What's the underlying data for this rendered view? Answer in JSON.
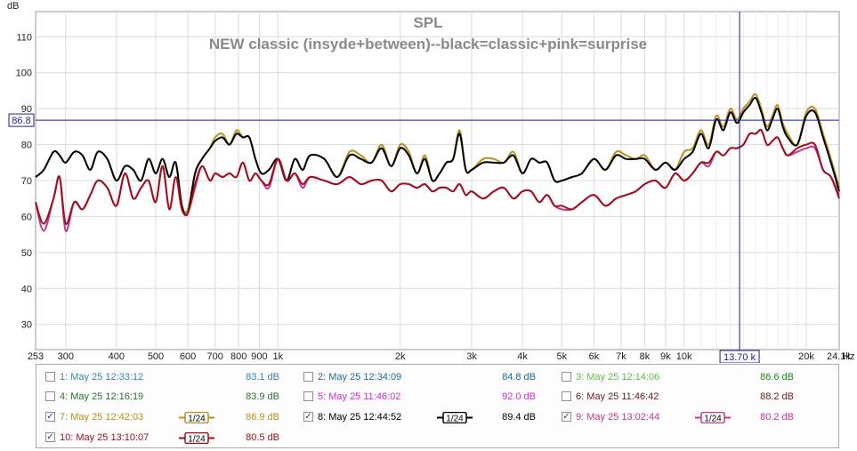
{
  "chart_data": {
    "type": "line",
    "title": "SPL",
    "subtitle": "NEW classic (insyde+between)--black=classic+pink=surprise",
    "ylabel": "dB",
    "xlabel": "Hz",
    "xscale": "log",
    "xlim": [
      253,
      24100
    ],
    "ylim": [
      23,
      117
    ],
    "grid": true,
    "y_ticks": [
      30,
      40,
      50,
      60,
      70,
      80,
      90,
      100,
      110
    ],
    "x_ticks": [
      {
        "value": 253,
        "label": "253"
      },
      {
        "value": 300,
        "label": "300"
      },
      {
        "value": 400,
        "label": "400"
      },
      {
        "value": 500,
        "label": "500"
      },
      {
        "value": 600,
        "label": "600"
      },
      {
        "value": 700,
        "label": "700"
      },
      {
        "value": 800,
        "label": "800"
      },
      {
        "value": 900,
        "label": "900"
      },
      {
        "value": 1000,
        "label": "1k"
      },
      {
        "value": 2000,
        "label": "2k"
      },
      {
        "value": 3000,
        "label": "3k"
      },
      {
        "value": 4000,
        "label": "4k"
      },
      {
        "value": 5000,
        "label": "5k"
      },
      {
        "value": 6000,
        "label": "6k"
      },
      {
        "value": 7000,
        "label": "7k"
      },
      {
        "value": 8000,
        "label": "8k"
      },
      {
        "value": 9000,
        "label": "9k"
      },
      {
        "value": 10000,
        "label": "10k"
      },
      {
        "value": 20000,
        "label": "20k"
      },
      {
        "value": 24100,
        "label": "24.1k"
      }
    ],
    "x_minor_ticks": [
      11000,
      12000,
      13000,
      14000,
      15000,
      16000,
      17000,
      18000,
      19000
    ],
    "cursor": {
      "x": 13700,
      "x_label": "13.70 k",
      "y": 86.8,
      "y_label": "86.8"
    },
    "series": [
      {
        "name": "7: May 25 12:42:03",
        "color": "#b8901a",
        "x": [
          253,
          265,
          280,
          290,
          300,
          315,
          330,
          345,
          360,
          380,
          400,
          420,
          440,
          460,
          480,
          500,
          520,
          540,
          560,
          580,
          600,
          625,
          650,
          680,
          700,
          730,
          760,
          790,
          820,
          850,
          880,
          910,
          950,
          1000,
          1050,
          1100,
          1150,
          1200,
          1300,
          1400,
          1500,
          1600,
          1700,
          1800,
          1900,
          2000,
          2100,
          2200,
          2300,
          2400,
          2500,
          2600,
          2700,
          2800,
          2900,
          3000,
          3200,
          3400,
          3600,
          3800,
          4000,
          4200,
          4400,
          4600,
          4800,
          5000,
          5300,
          5600,
          6000,
          6400,
          6800,
          7200,
          7600,
          8000,
          8500,
          9000,
          9500,
          10000,
          10500,
          11000,
          11500,
          12000,
          12500,
          13000,
          13500,
          14000,
          14500,
          15000,
          15500,
          16000,
          16500,
          17000,
          17500,
          18000,
          19000,
          20000,
          21000,
          22000,
          23000,
          24100
        ],
        "y": [
          71,
          73,
          78,
          77,
          75,
          78,
          77,
          73,
          78,
          76,
          70,
          74,
          73,
          70,
          76,
          72,
          76,
          71,
          75,
          63,
          62,
          72,
          76,
          79,
          82,
          83,
          80,
          84,
          82,
          82,
          76,
          72,
          73,
          76,
          70,
          76,
          73,
          77,
          76,
          71,
          78,
          77,
          75,
          80,
          74,
          80,
          78,
          72,
          77,
          70,
          72,
          75,
          76,
          84,
          73,
          73,
          76,
          76,
          75,
          78,
          72,
          76,
          75,
          75,
          70,
          70,
          71,
          72,
          76,
          73,
          78,
          77,
          76,
          77,
          73,
          75,
          73,
          78,
          79,
          84,
          80,
          88,
          85,
          90,
          87,
          90,
          92,
          94,
          90,
          85,
          88,
          91,
          86,
          83,
          80,
          89,
          90,
          83,
          76,
          68
        ]
      },
      {
        "name": "8: May 25 12:44:52",
        "color": "#000000",
        "x": [
          253,
          265,
          280,
          290,
          300,
          315,
          330,
          345,
          360,
          380,
          400,
          420,
          440,
          460,
          480,
          500,
          520,
          540,
          560,
          580,
          600,
          625,
          650,
          680,
          700,
          730,
          760,
          790,
          820,
          850,
          880,
          910,
          950,
          1000,
          1050,
          1100,
          1150,
          1200,
          1300,
          1400,
          1500,
          1600,
          1700,
          1800,
          1900,
          2000,
          2100,
          2200,
          2300,
          2400,
          2500,
          2600,
          2700,
          2800,
          2900,
          3000,
          3200,
          3400,
          3600,
          3800,
          4000,
          4200,
          4400,
          4600,
          4800,
          5000,
          5300,
          5600,
          6000,
          6400,
          6800,
          7200,
          7600,
          8000,
          8500,
          9000,
          9500,
          10000,
          10500,
          11000,
          11500,
          12000,
          12500,
          13000,
          13500,
          14000,
          14500,
          15000,
          15500,
          16000,
          16500,
          17000,
          17500,
          18000,
          19000,
          20000,
          21000,
          22000,
          23000,
          24100
        ],
        "y": [
          71,
          73,
          78,
          77,
          75,
          78,
          77,
          73,
          78,
          76,
          70,
          74,
          73,
          70,
          76,
          72,
          76,
          71,
          75,
          63,
          61,
          72,
          76,
          79,
          81,
          82,
          80,
          83,
          82,
          82,
          76,
          72,
          73,
          76,
          70,
          76,
          73,
          77,
          76,
          71,
          77,
          76,
          75,
          79,
          74,
          79,
          77,
          72,
          76,
          70,
          72,
          75,
          76,
          83,
          73,
          73,
          75,
          75,
          75,
          77,
          72,
          76,
          75,
          75,
          70,
          70,
          71,
          72,
          76,
          73,
          77,
          76,
          76,
          76,
          73,
          75,
          73,
          76,
          78,
          83,
          79,
          87,
          84,
          89,
          86,
          89,
          91,
          93,
          89,
          84,
          87,
          90,
          85,
          82,
          80,
          88,
          89,
          82,
          75,
          67
        ]
      },
      {
        "name": "9: May 25 13:02:44",
        "color": "#c03a92",
        "x": [
          253,
          265,
          280,
          290,
          300,
          315,
          330,
          345,
          360,
          380,
          400,
          420,
          440,
          460,
          480,
          500,
          520,
          540,
          560,
          580,
          600,
          625,
          650,
          680,
          700,
          730,
          760,
          790,
          820,
          850,
          880,
          910,
          950,
          1000,
          1050,
          1100,
          1150,
          1200,
          1300,
          1400,
          1500,
          1600,
          1700,
          1800,
          1900,
          2000,
          2100,
          2200,
          2300,
          2400,
          2500,
          2600,
          2700,
          2800,
          2900,
          3000,
          3200,
          3400,
          3600,
          3800,
          4000,
          4200,
          4400,
          4600,
          4800,
          5000,
          5300,
          5600,
          6000,
          6400,
          6800,
          7200,
          7600,
          8000,
          8500,
          9000,
          9500,
          10000,
          10500,
          11000,
          11500,
          12000,
          12500,
          13000,
          13500,
          14000,
          14500,
          15000,
          15500,
          16000,
          16500,
          17000,
          17500,
          18000,
          19000,
          20000,
          21000,
          22000,
          23000,
          24100
        ],
        "y": [
          64,
          56,
          65,
          71,
          56,
          64,
          62,
          66,
          70,
          68,
          63,
          72,
          65,
          68,
          70,
          64,
          74,
          62,
          71,
          62,
          61,
          68,
          74,
          70,
          72,
          71,
          72,
          71,
          75,
          70,
          72,
          70,
          68,
          76,
          70,
          72,
          68,
          71,
          70,
          69,
          71,
          69,
          70,
          70,
          67,
          69,
          69,
          68,
          69,
          67,
          68,
          68,
          67,
          69,
          66,
          67,
          65,
          67,
          68,
          65,
          67,
          67,
          64,
          66,
          63,
          62,
          62,
          64,
          66,
          63,
          65,
          66,
          67,
          69,
          70,
          68,
          72,
          70,
          72,
          75,
          74,
          78,
          77,
          79,
          79,
          80,
          83,
          83,
          84,
          80,
          81,
          82,
          79,
          77,
          78,
          79,
          79,
          73,
          71,
          66
        ]
      },
      {
        "name": "10: May 25 13:10:07",
        "color": "#a0101c",
        "x": [
          253,
          265,
          280,
          290,
          300,
          315,
          330,
          345,
          360,
          380,
          400,
          420,
          440,
          460,
          480,
          500,
          520,
          540,
          560,
          580,
          600,
          625,
          650,
          680,
          700,
          730,
          760,
          790,
          820,
          850,
          880,
          910,
          950,
          1000,
          1050,
          1100,
          1150,
          1200,
          1300,
          1400,
          1500,
          1600,
          1700,
          1800,
          1900,
          2000,
          2100,
          2200,
          2300,
          2400,
          2500,
          2600,
          2700,
          2800,
          2900,
          3000,
          3200,
          3400,
          3600,
          3800,
          4000,
          4200,
          4400,
          4600,
          4800,
          5000,
          5300,
          5600,
          6000,
          6400,
          6800,
          7200,
          7600,
          8000,
          8500,
          9000,
          9500,
          10000,
          10500,
          11000,
          11500,
          12000,
          12500,
          13000,
          13500,
          14000,
          14500,
          15000,
          15500,
          16000,
          16500,
          17000,
          17500,
          18000,
          19000,
          20000,
          21000,
          22000,
          23000,
          24100
        ],
        "y": [
          64,
          58,
          65,
          71,
          58,
          64,
          62,
          66,
          70,
          68,
          63,
          72,
          65,
          68,
          70,
          64,
          74,
          62,
          71,
          62,
          61,
          69,
          74,
          70,
          72,
          71,
          72,
          71,
          75,
          70,
          72,
          70,
          69,
          76,
          70,
          72,
          69,
          71,
          70,
          69,
          71,
          69,
          70,
          70,
          67,
          69,
          69,
          68,
          69,
          67,
          68,
          68,
          67,
          69,
          66,
          67,
          65,
          67,
          68,
          65,
          67,
          67,
          64,
          66,
          63,
          63,
          62,
          64,
          66,
          63,
          65,
          66,
          67,
          69,
          70,
          68,
          72,
          70,
          72,
          75,
          75,
          78,
          77,
          79,
          79,
          80,
          83,
          83,
          84,
          80,
          81,
          82,
          79,
          77,
          79,
          80,
          80,
          73,
          71,
          65
        ]
      }
    ]
  },
  "legend": [
    {
      "name": "1: May 25 12:33:12",
      "value": "83.1 dB",
      "checked": false,
      "color": "#3b86a8",
      "value_color": "#3b86a8",
      "show_symbol": false
    },
    {
      "name": "2: May 25 12:34:09",
      "value": "84.8 dB",
      "checked": false,
      "color": "#1e6b9a",
      "value_color": "#1e6b9a",
      "show_symbol": false
    },
    {
      "name": "3: May 25 12:14:06",
      "value": "86.6 dB",
      "checked": false,
      "color": "#5fbf4a",
      "value_color": "#1a8a1a",
      "show_symbol": false
    },
    {
      "name": "4: May 25 12:16:19",
      "value": "83.9 dB",
      "checked": false,
      "color": "#2f6f2f",
      "value_color": "#2f6f2f",
      "show_symbol": false
    },
    {
      "name": "5: May 25 11:46:02",
      "value": "92.0 dB",
      "checked": false,
      "color": "#d22ad2",
      "value_color": "#d22ad2",
      "show_symbol": false
    },
    {
      "name": "6: May 25 11:46:42",
      "value": "88.2 dB",
      "checked": false,
      "color": "#6b2020",
      "value_color": "#6b2020",
      "show_symbol": false
    },
    {
      "name": "7: May 25 12:42:03",
      "value": "86.9 dB",
      "checked": true,
      "color": "#b8901a",
      "value_color": "#b8901a",
      "show_symbol": true,
      "symbol": "1/24"
    },
    {
      "name": "8: May 25 12:44:52",
      "value": "89.4 dB",
      "checked": true,
      "color": "#000000",
      "value_color": "#000000",
      "show_symbol": true,
      "symbol": "1/24"
    },
    {
      "name": "9: May 25 13:02:44",
      "value": "80.2 dB",
      "checked": true,
      "color": "#c03a92",
      "value_color": "#c03a92",
      "show_symbol": true,
      "symbol": "1/24"
    },
    {
      "name": "10: May 25 13:10:07",
      "value": "80.5 dB",
      "checked": true,
      "color": "#a0101c",
      "value_color": "#a0101c",
      "show_symbol": true,
      "symbol": "1/24"
    }
  ],
  "check_mark": "✓"
}
